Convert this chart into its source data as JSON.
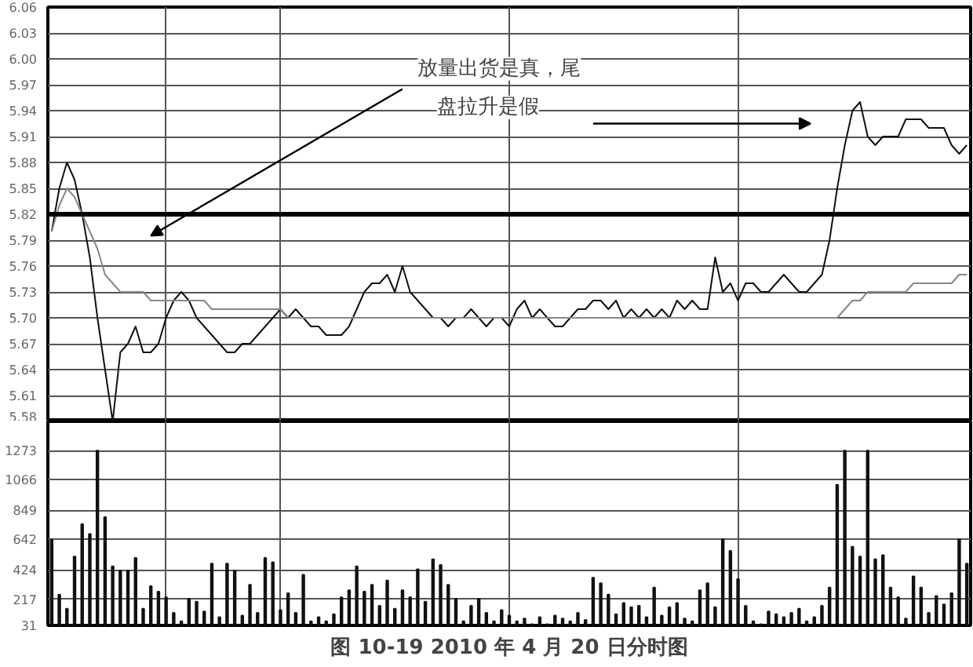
{
  "chart_data": [
    {
      "type": "line",
      "categories": [
        null,
        null,
        null,
        null,
        null,
        null,
        null,
        null,
        null,
        null,
        null,
        null,
        null,
        null,
        null,
        null,
        null,
        null,
        null,
        null,
        null,
        null,
        null,
        null,
        null,
        null,
        null,
        null,
        null,
        null,
        null,
        null,
        null,
        null,
        null,
        null,
        null,
        null,
        null,
        null,
        null,
        null,
        null,
        null,
        null,
        null,
        null,
        null,
        null,
        null,
        null,
        null,
        null,
        null,
        null,
        null,
        null,
        null,
        null,
        null,
        null,
        null,
        null,
        null,
        null,
        null,
        null,
        null,
        null,
        null,
        null,
        null,
        null,
        null,
        null,
        null,
        null,
        null,
        null,
        null,
        null,
        null,
        null,
        null,
        null,
        null,
        null,
        null,
        null,
        null,
        null,
        null,
        null,
        null,
        null,
        null,
        null,
        null,
        null,
        null,
        null,
        null,
        null,
        null,
        null,
        null,
        null,
        null,
        null,
        null,
        null,
        null,
        null,
        null,
        null,
        null,
        null,
        null,
        null,
        null,
        null
      ],
      "series": [
        {
          "color": "#111111",
          "values": [
            5.8,
            5.85,
            5.88,
            5.86,
            5.82,
            5.77,
            5.7,
            5.64,
            5.58,
            5.66,
            5.67,
            5.69,
            5.66,
            5.66,
            5.67,
            5.7,
            5.72,
            5.73,
            5.72,
            5.7,
            5.69,
            5.68,
            5.67,
            5.66,
            5.66,
            5.67,
            5.67,
            5.68,
            5.69,
            5.7,
            5.71,
            5.7,
            5.71,
            5.7,
            5.69,
            5.69,
            5.68,
            5.68,
            5.68,
            5.69,
            5.71,
            5.73,
            5.74,
            5.74,
            5.75,
            5.73,
            5.76,
            5.73,
            5.72,
            5.71,
            5.7,
            5.7,
            5.69,
            5.7,
            5.7,
            5.71,
            5.7,
            5.69,
            5.7,
            5.7,
            5.69,
            5.71,
            5.72,
            5.7,
            5.71,
            5.7,
            5.69,
            5.69,
            5.7,
            5.71,
            5.71,
            5.72,
            5.72,
            5.71,
            5.72,
            5.7,
            5.71,
            5.7,
            5.71,
            5.7,
            5.71,
            5.7,
            5.72,
            5.71,
            5.72,
            5.71,
            5.71,
            5.77,
            5.73,
            5.74,
            5.72,
            5.74,
            5.74,
            5.73,
            5.73,
            5.74,
            5.75,
            5.74,
            5.73,
            5.73,
            5.74,
            5.75,
            5.79,
            5.85,
            5.9,
            5.94,
            5.95,
            5.91,
            5.9,
            5.91,
            5.91,
            5.91,
            5.93,
            5.93,
            5.93,
            5.92,
            5.92,
            5.92,
            5.9,
            5.89,
            5.9
          ]
        },
        {
          "color": "#888888",
          "values": [
            5.8,
            5.83,
            5.85,
            5.84,
            5.82,
            5.8,
            5.78,
            5.75,
            5.74,
            5.73,
            5.73,
            5.73,
            5.73,
            5.72,
            5.72,
            5.72,
            5.72,
            5.72,
            5.72,
            5.72,
            5.72,
            5.71,
            5.71,
            5.71,
            5.71,
            5.71,
            5.71,
            5.71,
            5.71,
            5.71,
            5.71,
            5.7,
            5.7,
            5.7,
            5.7,
            5.7,
            5.7,
            5.7,
            5.7,
            5.7,
            5.7,
            5.7,
            5.7,
            5.7,
            5.7,
            5.7,
            5.7,
            5.7,
            5.7,
            5.7,
            5.7,
            5.7,
            5.7,
            5.7,
            5.7,
            5.7,
            5.7,
            5.7,
            5.7,
            5.7,
            5.7,
            5.7,
            5.7,
            5.7,
            5.7,
            5.7,
            5.7,
            5.7,
            5.7,
            5.7,
            5.7,
            5.7,
            5.7,
            5.7,
            5.7,
            5.7,
            5.7,
            5.7,
            5.7,
            5.7,
            5.7,
            5.7,
            5.7,
            5.7,
            5.7,
            5.7,
            5.7,
            5.7,
            5.7,
            5.7,
            5.7,
            5.7,
            5.7,
            5.7,
            5.7,
            5.7,
            5.7,
            5.7,
            5.7,
            5.7,
            5.7,
            5.7,
            5.7,
            5.7,
            5.71,
            5.72,
            5.72,
            5.73,
            5.73,
            5.73,
            5.73,
            5.73,
            5.73,
            5.74,
            5.74,
            5.74,
            5.74,
            5.74,
            5.74,
            5.75,
            5.75
          ]
        }
      ],
      "ylim": [
        5.58,
        6.06
      ],
      "yticks": [
        5.58,
        5.61,
        5.64,
        5.67,
        {
          "value": 5.7,
          "label": "5.70"
        },
        5.73,
        5.76,
        5.79,
        5.82,
        5.85,
        5.88,
        5.91,
        5.94,
        5.97,
        {
          "value": 6.0,
          "label": "6.00"
        },
        6.03,
        6.06
      ],
      "grid": true,
      "ref_lines": [
        {
          "axis": "y",
          "value": 5.82
        }
      ],
      "annotations": [
        "放量出货是真，尾盘拉升是假"
      ]
    },
    {
      "type": "bar",
      "title": "图 10-19 2010 年 4 月 20 日分时图",
      "categories": [
        null,
        null,
        null,
        null,
        null,
        null,
        null,
        null,
        null,
        null,
        null,
        null,
        null,
        null,
        null,
        null,
        null,
        null,
        null,
        null,
        null,
        null,
        null,
        null,
        null,
        null,
        null,
        null,
        null,
        null,
        null,
        null,
        null,
        null,
        null,
        null,
        null,
        null,
        null,
        null,
        null,
        null,
        null,
        null,
        null,
        null,
        null,
        null,
        null,
        null,
        null,
        null,
        null,
        null,
        null,
        null,
        null,
        null,
        null,
        null,
        null,
        null,
        null,
        null,
        null,
        null,
        null,
        null,
        null,
        null,
        null,
        null,
        null,
        null,
        null,
        null,
        null,
        null,
        null,
        null,
        null,
        null,
        null,
        null,
        null,
        null,
        null,
        null,
        null,
        null,
        null,
        null,
        null,
        null,
        null,
        null,
        null,
        null,
        null,
        null,
        null,
        null,
        null,
        null,
        null,
        null,
        null,
        null,
        null,
        null,
        null,
        null,
        null,
        null,
        null,
        null,
        null,
        null,
        null,
        null,
        null
      ],
      "series": [
        {
          "color": "#111111",
          "values": [
            640,
            250,
            150,
            520,
            750,
            680,
            1273,
            800,
            450,
            420,
            420,
            510,
            150,
            310,
            270,
            230,
            120,
            60,
            220,
            200,
            130,
            470,
            90,
            470,
            420,
            100,
            320,
            120,
            510,
            480,
            140,
            260,
            120,
            390,
            60,
            90,
            60,
            110,
            230,
            280,
            450,
            270,
            320,
            170,
            350,
            150,
            280,
            230,
            430,
            200,
            500,
            460,
            320,
            220,
            60,
            170,
            220,
            120,
            60,
            140,
            100,
            60,
            80,
            40,
            90,
            40,
            100,
            80,
            60,
            120,
            70,
            370,
            330,
            250,
            110,
            190,
            160,
            170,
            90,
            300,
            100,
            160,
            190,
            80,
            60,
            280,
            330,
            160,
            642,
            560,
            360,
            170,
            60,
            40,
            130,
            110,
            90,
            120,
            150,
            60,
            90,
            170,
            300,
            1030,
            1273,
            590,
            520,
            1273,
            500,
            530,
            300,
            230,
            80,
            380,
            300,
            120,
            240,
            180,
            260,
            642,
            470
          ]
        }
      ],
      "ylim": [
        31,
        1480
      ],
      "yticks": [
        31,
        217,
        424,
        642,
        849,
        1066,
        1273
      ],
      "grid": true
    }
  ]
}
